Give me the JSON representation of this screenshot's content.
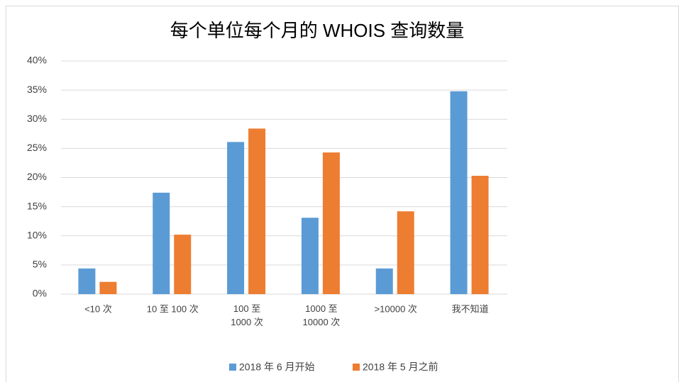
{
  "chart_data": {
    "type": "bar",
    "title": "每个单位每个月的 WHOIS 查询数量",
    "categories": [
      "<10 次",
      "10 至 100 次",
      "100 至\n1000 次",
      "1000 至\n10000 次",
      ">10000 次",
      "我不知道"
    ],
    "series": [
      {
        "name": "2018 年 6 月开始",
        "color": "#5b9bd5",
        "values": [
          4.4,
          17.4,
          26.1,
          13.1,
          4.4,
          34.8
        ]
      },
      {
        "name": "2018 年 5 月之前",
        "color": "#ed7d31",
        "values": [
          2.1,
          10.2,
          28.4,
          24.3,
          14.2,
          20.3
        ]
      }
    ],
    "ylim": [
      0,
      40
    ],
    "yticks": [
      {
        "value": 0,
        "label": "0%"
      },
      {
        "value": 5,
        "label": "5%"
      },
      {
        "value": 10,
        "label": "10%"
      },
      {
        "value": 15,
        "label": "15%"
      },
      {
        "value": 20,
        "label": "20%"
      },
      {
        "value": 25,
        "label": "25%"
      },
      {
        "value": 30,
        "label": "30%"
      },
      {
        "value": 35,
        "label": "35%"
      },
      {
        "value": 40,
        "label": "40%"
      }
    ],
    "grid": true,
    "legend": "bottom"
  }
}
